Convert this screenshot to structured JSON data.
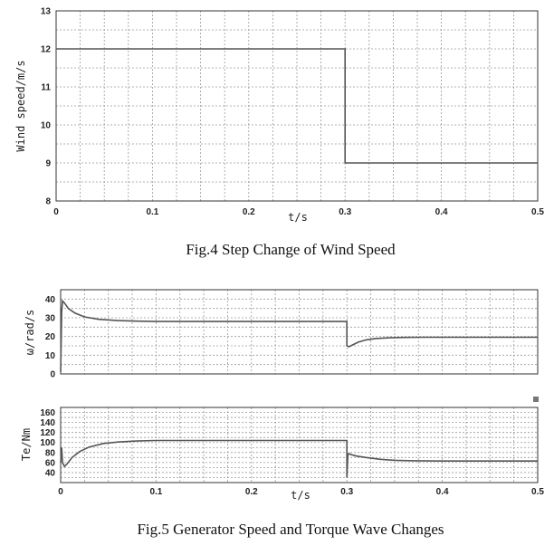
{
  "captions": {
    "fig4": "Fig.4 Step Change of Wind Speed",
    "fig5": "Fig.5 Generator Speed and Torque Wave Changes"
  },
  "chart_data": [
    {
      "type": "line",
      "id": "wind",
      "xlabel": "t/s",
      "ylabel": "Wind speed/m/s",
      "xlim": [
        0,
        0.5
      ],
      "ylim": [
        8,
        13
      ],
      "xticks": [
        "0",
        "0.1",
        "0.2",
        "0.3",
        "0.4",
        "0.5"
      ],
      "yticks": [
        "8",
        "9",
        "10",
        "11",
        "12",
        "13"
      ],
      "grid": true,
      "series": [
        {
          "x": [
            0,
            0.3,
            0.3,
            0.5
          ],
          "y": [
            12,
            12,
            9,
            9
          ]
        }
      ]
    },
    {
      "type": "line",
      "id": "omega",
      "xlabel": "",
      "ylabel": "ω/rad/s",
      "xlim": [
        0,
        0.5
      ],
      "ylim": [
        0,
        45
      ],
      "xticks": [],
      "yticks": [
        "0",
        "10",
        "20",
        "30",
        "40"
      ],
      "grid": true,
      "series": [
        {
          "x": [
            0,
            0.001,
            0.002,
            0.004,
            0.008,
            0.015,
            0.025,
            0.04,
            0.06,
            0.08,
            0.1,
            0.15,
            0.2,
            0.3,
            0.3,
            0.302,
            0.306,
            0.312,
            0.32,
            0.33,
            0.345,
            0.36,
            0.38,
            0.4,
            0.45,
            0.5
          ],
          "y": [
            1,
            33,
            39,
            38,
            35,
            32.5,
            30.5,
            29.2,
            28.5,
            28.2,
            28,
            28,
            28,
            28,
            15,
            14.5,
            15.5,
            17,
            18.2,
            18.9,
            19.3,
            19.5,
            19.6,
            19.6,
            19.6,
            19.6
          ]
        }
      ]
    },
    {
      "type": "line",
      "id": "torque",
      "xlabel": "t/s",
      "ylabel": "Te/Nm",
      "xlim": [
        0,
        0.5
      ],
      "ylim": [
        20,
        170
      ],
      "xticks": [
        "0",
        "0.1",
        "0.2",
        "0.3",
        "0.4",
        "0.5"
      ],
      "yticks": [
        "40",
        "60",
        "80",
        "100",
        "120",
        "140",
        "160"
      ],
      "grid": true,
      "series": [
        {
          "x": [
            0,
            0.001,
            0.002,
            0.004,
            0.007,
            0.012,
            0.02,
            0.03,
            0.045,
            0.06,
            0.08,
            0.1,
            0.15,
            0.2,
            0.3,
            0.3,
            0.301,
            0.302,
            0.304,
            0.31,
            0.32,
            0.335,
            0.35,
            0.37,
            0.4,
            0.45,
            0.5
          ],
          "y": [
            60,
            90,
            60,
            52,
            58,
            70,
            82,
            91,
            98,
            101,
            103,
            104,
            104,
            104,
            104,
            30,
            75,
            78,
            76,
            73,
            70,
            66.5,
            64.5,
            63.5,
            63,
            63,
            63
          ]
        }
      ]
    }
  ]
}
